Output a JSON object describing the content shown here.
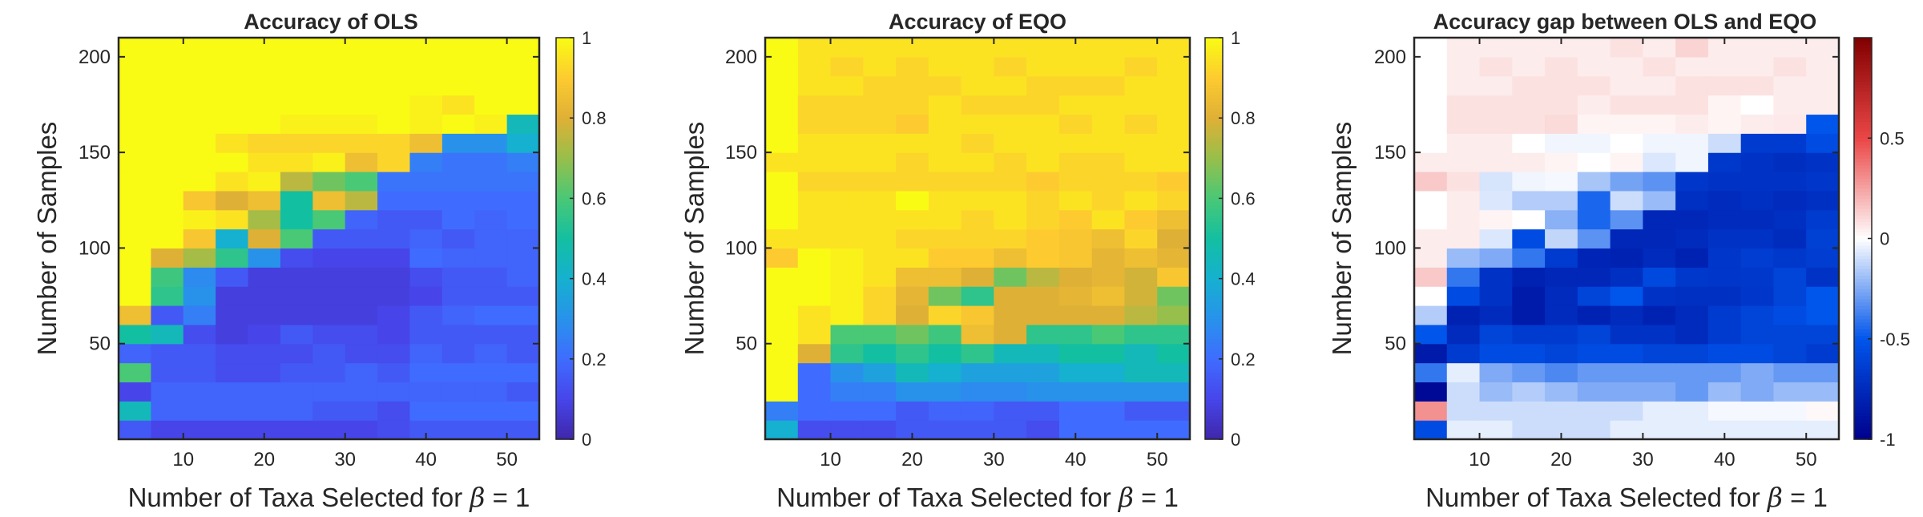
{
  "chart_data": [
    {
      "type": "heatmap",
      "title": "Accuracy of OLS",
      "xlabel": "Number of Taxa Selected for",
      "xlabel_symbol": "β",
      "xlabel_suffix": " = 1",
      "ylabel": "Number of Samples",
      "x_centers": [
        4,
        8,
        12,
        16,
        20,
        24,
        28,
        32,
        36,
        40,
        44,
        48,
        52
      ],
      "y_centers": [
        5,
        15,
        25,
        35,
        45,
        55,
        65,
        75,
        85,
        95,
        105,
        115,
        125,
        135,
        145,
        155,
        165,
        175,
        185,
        195,
        205
      ],
      "xlim": [
        2,
        54
      ],
      "ylim": [
        0,
        210
      ],
      "xticks": [
        10,
        20,
        30,
        40,
        50
      ],
      "yticks": [
        50,
        100,
        150,
        200
      ],
      "colormap": "parula",
      "clim": [
        0,
        1
      ],
      "colorbar_ticks": [
        0,
        0.2,
        0.4,
        0.6,
        0.8,
        1
      ],
      "z": [
        [
          0.15,
          0.1,
          0.1,
          0.1,
          0.1,
          0.1,
          0.1,
          0.1,
          0.12,
          0.15,
          0.15,
          0.15,
          0.15
        ],
        [
          0.45,
          0.18,
          0.18,
          0.18,
          0.18,
          0.18,
          0.15,
          0.15,
          0.12,
          0.2,
          0.2,
          0.2,
          0.2
        ],
        [
          0.1,
          0.18,
          0.18,
          0.18,
          0.18,
          0.18,
          0.18,
          0.18,
          0.18,
          0.18,
          0.18,
          0.18,
          0.15
        ],
        [
          0.6,
          0.15,
          0.15,
          0.12,
          0.12,
          0.15,
          0.15,
          0.18,
          0.15,
          0.2,
          0.2,
          0.2,
          0.2
        ],
        [
          0.18,
          0.15,
          0.15,
          0.12,
          0.12,
          0.12,
          0.15,
          0.12,
          0.12,
          0.18,
          0.15,
          0.18,
          0.15
        ],
        [
          0.5,
          0.45,
          0.12,
          0.08,
          0.1,
          0.15,
          0.12,
          0.12,
          0.1,
          0.15,
          0.15,
          0.15,
          0.15
        ],
        [
          0.85,
          0.15,
          0.25,
          0.08,
          0.08,
          0.08,
          0.08,
          0.08,
          0.1,
          0.15,
          0.18,
          0.2,
          0.2
        ],
        [
          1,
          0.55,
          0.3,
          0.08,
          0.08,
          0.08,
          0.08,
          0.08,
          0.08,
          0.1,
          0.15,
          0.15,
          0.15
        ],
        [
          1,
          0.58,
          0.28,
          0.15,
          0.08,
          0.08,
          0.08,
          0.08,
          0.08,
          0.12,
          0.15,
          0.15,
          0.18
        ],
        [
          1,
          0.8,
          0.72,
          0.55,
          0.3,
          0.12,
          0.1,
          0.1,
          0.1,
          0.2,
          0.18,
          0.18,
          0.18
        ],
        [
          1,
          1,
          0.88,
          0.4,
          0.8,
          0.6,
          0.15,
          0.15,
          0.15,
          0.18,
          0.15,
          0.18,
          0.18
        ],
        [
          1,
          1,
          0.98,
          0.95,
          0.72,
          0.5,
          0.6,
          0.18,
          0.15,
          0.15,
          0.2,
          0.18,
          0.2
        ],
        [
          1,
          1,
          0.88,
          0.8,
          0.85,
          0.5,
          0.85,
          0.75,
          0.2,
          0.2,
          0.2,
          0.2,
          0.2
        ],
        [
          1,
          1,
          1,
          0.95,
          0.98,
          0.75,
          0.65,
          0.6,
          0.22,
          0.22,
          0.22,
          0.22,
          0.22
        ],
        [
          1,
          1,
          1,
          1,
          0.95,
          0.95,
          0.98,
          0.85,
          0.92,
          0.25,
          0.22,
          0.22,
          0.25
        ],
        [
          1,
          1,
          1,
          0.95,
          0.92,
          0.92,
          0.92,
          0.92,
          0.92,
          0.85,
          0.3,
          0.3,
          0.4
        ],
        [
          1,
          1,
          1,
          1,
          1,
          0.98,
          0.98,
          0.98,
          1,
          0.98,
          1,
          0.98,
          0.45
        ],
        [
          1,
          1,
          1,
          1,
          1,
          1,
          1,
          1,
          1,
          0.98,
          0.95,
          1,
          1
        ],
        [
          1,
          1,
          1,
          1,
          1,
          1,
          1,
          1,
          1,
          1,
          1,
          1,
          1
        ],
        [
          1,
          1,
          1,
          1,
          1,
          1,
          1,
          1,
          1,
          1,
          1,
          1,
          1
        ],
        [
          1,
          1,
          1,
          1,
          1,
          1,
          1,
          1,
          1,
          1,
          1,
          1,
          1
        ]
      ]
    },
    {
      "type": "heatmap",
      "title": "Accuracy of EQO",
      "xlabel": "Number of Taxa Selected for",
      "xlabel_symbol": "β",
      "xlabel_suffix": " = 1",
      "ylabel": "Number of Samples",
      "x_centers": [
        4,
        8,
        12,
        16,
        20,
        24,
        28,
        32,
        36,
        40,
        44,
        48,
        52
      ],
      "y_centers": [
        5,
        15,
        25,
        35,
        45,
        55,
        65,
        75,
        85,
        95,
        105,
        115,
        125,
        135,
        145,
        155,
        165,
        175,
        185,
        195,
        205
      ],
      "xlim": [
        2,
        54
      ],
      "ylim": [
        0,
        210
      ],
      "xticks": [
        10,
        20,
        30,
        40,
        50
      ],
      "yticks": [
        50,
        100,
        150,
        200
      ],
      "colormap": "parula",
      "clim": [
        0,
        1
      ],
      "colorbar_ticks": [
        0,
        0.2,
        0.4,
        0.6,
        0.8,
        1
      ],
      "z": [
        [
          0.4,
          0.12,
          0.12,
          0.12,
          0.15,
          0.15,
          0.15,
          0.15,
          0.12,
          0.2,
          0.2,
          0.2,
          0.2
        ],
        [
          0.25,
          0.2,
          0.2,
          0.2,
          0.15,
          0.18,
          0.18,
          0.15,
          0.15,
          0.2,
          0.2,
          0.15,
          0.15
        ],
        [
          1,
          0.2,
          0.25,
          0.25,
          0.3,
          0.3,
          0.28,
          0.28,
          0.3,
          0.3,
          0.3,
          0.3,
          0.3
        ],
        [
          1,
          0.2,
          0.3,
          0.35,
          0.45,
          0.4,
          0.35,
          0.35,
          0.35,
          0.4,
          0.4,
          0.45,
          0.45
        ],
        [
          1,
          0.8,
          0.55,
          0.5,
          0.55,
          0.5,
          0.55,
          0.45,
          0.45,
          0.5,
          0.5,
          0.45,
          0.5
        ],
        [
          1,
          0.95,
          0.6,
          0.6,
          0.65,
          0.58,
          0.85,
          0.8,
          0.55,
          0.55,
          0.6,
          0.55,
          0.55
        ],
        [
          1,
          0.95,
          0.98,
          0.92,
          0.8,
          0.92,
          0.88,
          0.8,
          0.8,
          0.8,
          0.8,
          0.75,
          0.7
        ],
        [
          1,
          1,
          0.98,
          0.92,
          0.82,
          0.65,
          0.55,
          0.8,
          0.8,
          0.82,
          0.85,
          0.78,
          0.65
        ],
        [
          1,
          1,
          0.98,
          0.95,
          0.85,
          0.85,
          0.8,
          0.65,
          0.75,
          0.8,
          0.82,
          0.78,
          0.88
        ],
        [
          0.9,
          1,
          0.98,
          0.95,
          0.95,
          0.9,
          0.9,
          0.85,
          0.9,
          0.88,
          0.82,
          0.85,
          0.82
        ],
        [
          0.95,
          0.95,
          0.95,
          0.95,
          0.92,
          0.92,
          0.92,
          0.92,
          0.9,
          0.88,
          0.85,
          0.92,
          0.8
        ],
        [
          1,
          0.95,
          0.95,
          0.95,
          0.95,
          0.95,
          0.92,
          0.95,
          0.92,
          0.9,
          0.95,
          0.9,
          0.85
        ],
        [
          1,
          0.95,
          0.95,
          0.95,
          1,
          0.95,
          0.95,
          0.95,
          0.92,
          0.95,
          0.92,
          0.95,
          0.92
        ],
        [
          1,
          0.92,
          0.92,
          0.92,
          0.92,
          0.92,
          0.92,
          0.92,
          0.9,
          0.92,
          0.92,
          0.92,
          0.9
        ],
        [
          0.95,
          0.95,
          0.95,
          0.95,
          0.92,
          0.95,
          0.95,
          0.92,
          0.95,
          0.92,
          0.92,
          0.95,
          0.95
        ],
        [
          1,
          0.95,
          0.95,
          0.95,
          0.95,
          0.95,
          0.92,
          0.95,
          0.95,
          0.95,
          0.95,
          0.95,
          0.95
        ],
        [
          1,
          0.92,
          0.92,
          0.92,
          0.9,
          0.95,
          0.95,
          0.95,
          0.95,
          0.92,
          0.95,
          0.92,
          0.95
        ],
        [
          1,
          0.92,
          0.92,
          0.92,
          0.92,
          0.95,
          0.92,
          0.92,
          0.92,
          0.95,
          0.95,
          0.95,
          0.95
        ],
        [
          1,
          0.95,
          0.95,
          0.92,
          0.92,
          0.92,
          0.95,
          0.95,
          0.92,
          0.92,
          0.92,
          0.95,
          0.95
        ],
        [
          1,
          0.95,
          0.92,
          0.95,
          0.92,
          0.95,
          0.95,
          0.92,
          0.95,
          0.95,
          0.95,
          0.92,
          0.95
        ],
        [
          1,
          0.95,
          0.95,
          0.95,
          0.95,
          0.95,
          0.95,
          0.95,
          0.95,
          0.95,
          0.95,
          0.95,
          0.95
        ]
      ]
    },
    {
      "type": "heatmap",
      "title": "Accuracy gap between OLS and EQO",
      "xlabel": "Number of Taxa Selected for",
      "xlabel_symbol": "β",
      "xlabel_suffix": " = 1",
      "ylabel": "Number of Samples",
      "x_centers": [
        4,
        8,
        12,
        16,
        20,
        24,
        28,
        32,
        36,
        40,
        44,
        48,
        52
      ],
      "y_centers": [
        5,
        15,
        25,
        35,
        45,
        55,
        65,
        75,
        85,
        95,
        105,
        115,
        125,
        135,
        145,
        155,
        165,
        175,
        185,
        195,
        205
      ],
      "xlim": [
        2,
        54
      ],
      "ylim": [
        0,
        210
      ],
      "xticks": [
        10,
        20,
        30,
        40,
        50
      ],
      "yticks": [
        50,
        100,
        150,
        200
      ],
      "colormap": "blue-white-red",
      "clim": [
        -1,
        1
      ],
      "colorbar_ticks": [
        -1,
        -0.5,
        0,
        0.5
      ],
      "z": [
        [
          -0.55,
          -0.05,
          -0.05,
          -0.1,
          -0.1,
          -0.1,
          -0.05,
          -0.05,
          -0.05,
          -0.05,
          -0.05,
          -0.05,
          -0.05
        ],
        [
          0.3,
          -0.1,
          -0.1,
          -0.1,
          -0.1,
          -0.1,
          -0.1,
          -0.05,
          -0.05,
          -0.02,
          -0.02,
          -0.02,
          0.02
        ],
        [
          -0.95,
          -0.1,
          -0.2,
          -0.15,
          -0.2,
          -0.25,
          -0.25,
          -0.25,
          -0.3,
          -0.2,
          -0.25,
          -0.2,
          -0.2
        ],
        [
          -0.4,
          -0.05,
          -0.25,
          -0.3,
          -0.35,
          -0.3,
          -0.3,
          -0.3,
          -0.3,
          -0.3,
          -0.25,
          -0.3,
          -0.3
        ],
        [
          -0.85,
          -0.65,
          -0.55,
          -0.55,
          -0.6,
          -0.55,
          -0.55,
          -0.6,
          -0.6,
          -0.55,
          -0.55,
          -0.6,
          -0.65
        ],
        [
          -0.5,
          -0.75,
          -0.6,
          -0.65,
          -0.65,
          -0.6,
          -0.7,
          -0.7,
          -0.75,
          -0.65,
          -0.6,
          -0.6,
          -0.6
        ],
        [
          -0.15,
          -0.8,
          -0.75,
          -0.85,
          -0.75,
          -0.8,
          -0.75,
          -0.8,
          -0.75,
          -0.65,
          -0.6,
          -0.55,
          -0.5
        ],
        [
          0,
          -0.55,
          -0.7,
          -0.85,
          -0.75,
          -0.6,
          -0.5,
          -0.7,
          -0.72,
          -0.72,
          -0.68,
          -0.6,
          -0.5
        ],
        [
          0.15,
          -0.4,
          -0.7,
          -0.8,
          -0.77,
          -0.77,
          -0.72,
          -0.57,
          -0.67,
          -0.68,
          -0.67,
          -0.6,
          -0.7
        ],
        [
          0.05,
          -0.2,
          -0.25,
          -0.4,
          -0.65,
          -0.78,
          -0.8,
          -0.75,
          -0.8,
          -0.68,
          -0.64,
          -0.67,
          -0.64
        ],
        [
          0.05,
          0.05,
          -0.07,
          -0.55,
          -0.12,
          -0.32,
          -0.77,
          -0.77,
          -0.75,
          -0.7,
          -0.7,
          -0.74,
          -0.62
        ],
        [
          0,
          0.05,
          0.03,
          0,
          -0.23,
          -0.45,
          -0.32,
          -0.77,
          -0.77,
          -0.75,
          -0.75,
          -0.72,
          -0.65
        ],
        [
          0,
          0.05,
          -0.07,
          -0.15,
          -0.15,
          -0.45,
          -0.1,
          -0.2,
          -0.72,
          -0.75,
          -0.72,
          -0.75,
          -0.72
        ],
        [
          0.15,
          0.08,
          -0.08,
          -0.03,
          -0.02,
          -0.17,
          -0.27,
          -0.32,
          -0.68,
          -0.7,
          -0.7,
          -0.7,
          -0.68
        ],
        [
          0.05,
          0.05,
          0.05,
          0.05,
          0.03,
          0,
          0.03,
          -0.07,
          -0.03,
          -0.67,
          -0.7,
          -0.73,
          -0.7
        ],
        [
          0,
          0.05,
          0.05,
          0,
          -0.03,
          -0.03,
          0,
          -0.03,
          -0.03,
          -0.1,
          -0.65,
          -0.65,
          -0.55
        ],
        [
          0,
          0.08,
          0.08,
          0.08,
          0.1,
          0.03,
          0.03,
          0.03,
          0.05,
          0.03,
          0.05,
          0.06,
          -0.5
        ],
        [
          0,
          0.08,
          0.08,
          0.08,
          0.08,
          0.05,
          0.08,
          0.08,
          0.08,
          0.03,
          0,
          0.05,
          0.05
        ],
        [
          0,
          0.05,
          0.05,
          0.08,
          0.08,
          0.08,
          0.05,
          0.05,
          0.08,
          0.08,
          0.08,
          0.05,
          0.05
        ],
        [
          0,
          0.05,
          0.08,
          0.05,
          0.08,
          0.05,
          0.05,
          0.08,
          0.05,
          0.05,
          0.05,
          0.08,
          0.05
        ],
        [
          0,
          0.05,
          0.05,
          0.05,
          0.05,
          0.05,
          0.08,
          0.05,
          0.12,
          0.05,
          0.05,
          0.05,
          0.05
        ]
      ]
    }
  ]
}
